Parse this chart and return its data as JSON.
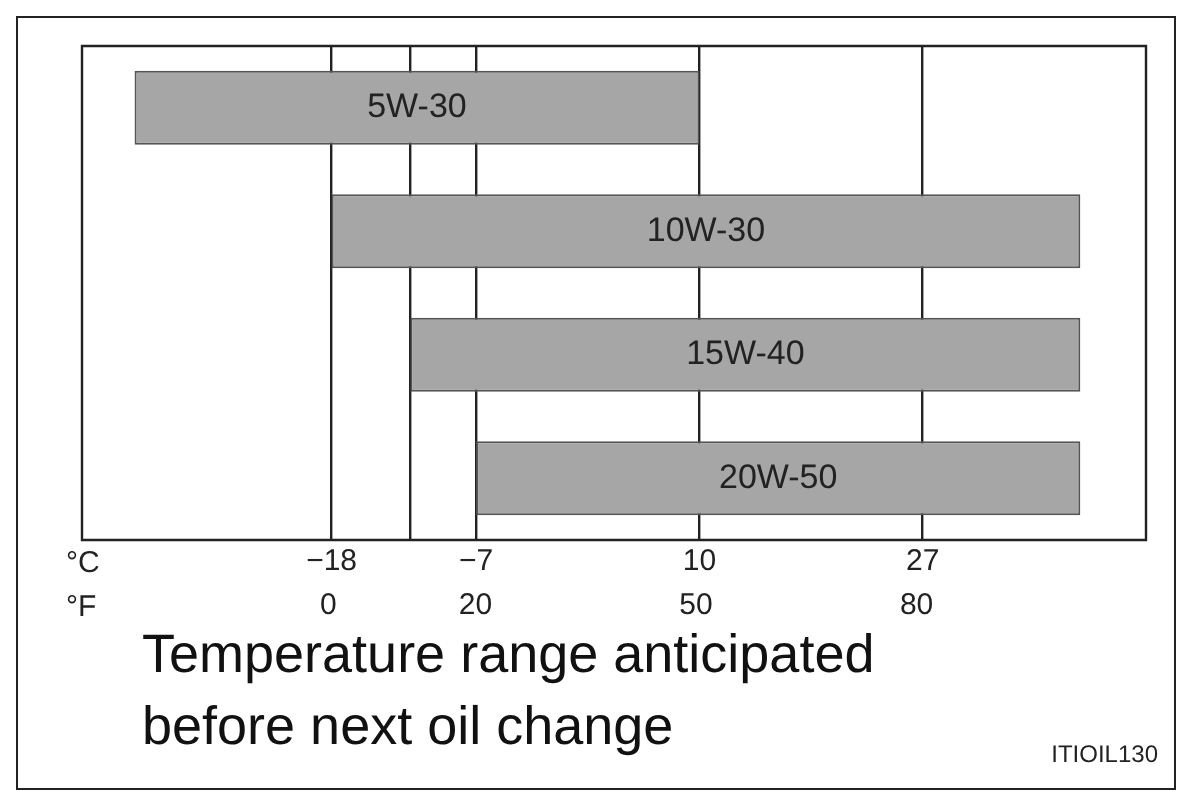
{
  "chart_data": {
    "type": "bar",
    "orientation": "horizontal",
    "title": "Temperature range anticipated before next oil change",
    "categories": [
      "5W-30",
      "10W-30",
      "15W-40",
      "20W-50"
    ],
    "values": [
      43,
      57,
      51,
      46
    ],
    "base": [
      -33,
      -18,
      -12,
      -7
    ],
    "color": "#a6a6a6",
    "xlabel": "°C",
    "x2label": "°F",
    "xlim": [
      -37,
      44
    ],
    "xticks": [
      -18,
      {
        "value": -12,
        "label": null
      },
      -7,
      10,
      27
    ],
    "x2lim": [
      -33.5,
      111.2
    ],
    "x2ticks": [
      0,
      20,
      50,
      80
    ],
    "grid": "x",
    "legend": false,
    "annotations": [
      "ITIOIL130"
    ]
  }
}
